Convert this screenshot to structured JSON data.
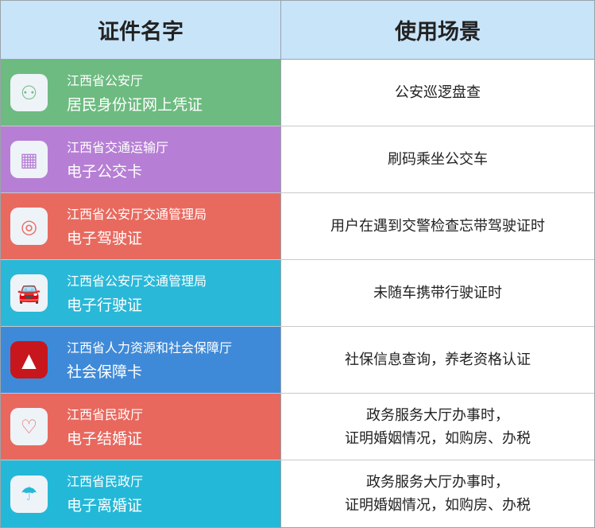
{
  "header": {
    "col1": "证件名字",
    "col2": "使用场景"
  },
  "rows": [
    {
      "org": "江西省公安厅",
      "name": "居民身份证网上凭证",
      "usage": "公安巡逻盘查",
      "color": "#6dbb80",
      "icon": "id-card-icon",
      "glyph": "⚇",
      "iconColor": "#6dbb80"
    },
    {
      "org": "江西省交通运输厅",
      "name": "电子公交卡",
      "usage": "刷码乘坐公交车",
      "color": "#b67fd5",
      "icon": "bus-card-icon",
      "glyph": "▦",
      "iconColor": "#b67fd5"
    },
    {
      "org": "江西省公安厅交通管理局",
      "name": "电子驾驶证",
      "usage": "用户在遇到交警检查忘带驾驶证时",
      "color": "#e86a5f",
      "icon": "steering-wheel-icon",
      "glyph": "◎",
      "iconColor": "#e86a5f"
    },
    {
      "org": "江西省公安厅交通管理局",
      "name": "电子行驶证",
      "usage": "未随车携带行驶证时",
      "color": "#2ab8d8",
      "icon": "car-icon",
      "glyph": "🚘",
      "iconColor": "#2ab8d8"
    },
    {
      "org": "江西省人力资源和社会保障厅",
      "name": "社会保障卡",
      "usage": "社保信息查询，养老资格认证",
      "color": "#3f8ad8",
      "icon": "social-security-logo-icon",
      "glyph": "▲",
      "iconColor": "#c8161d"
    },
    {
      "org": "江西省民政厅",
      "name": "电子结婚证",
      "usage": "政务服务大厅办事时，\n证明婚姻情况，如购房、办税",
      "color": "#e8685e",
      "icon": "heart-icon",
      "glyph": "♡",
      "iconColor": "#e8685e"
    },
    {
      "org": "江西省民政厅",
      "name": "电子离婚证",
      "usage": "政务服务大厅办事时，\n证明婚姻情况，如购房、办税",
      "color": "#24b8d8",
      "icon": "divorce-certificate-icon",
      "glyph": "☂",
      "iconColor": "#24b8d8"
    }
  ]
}
